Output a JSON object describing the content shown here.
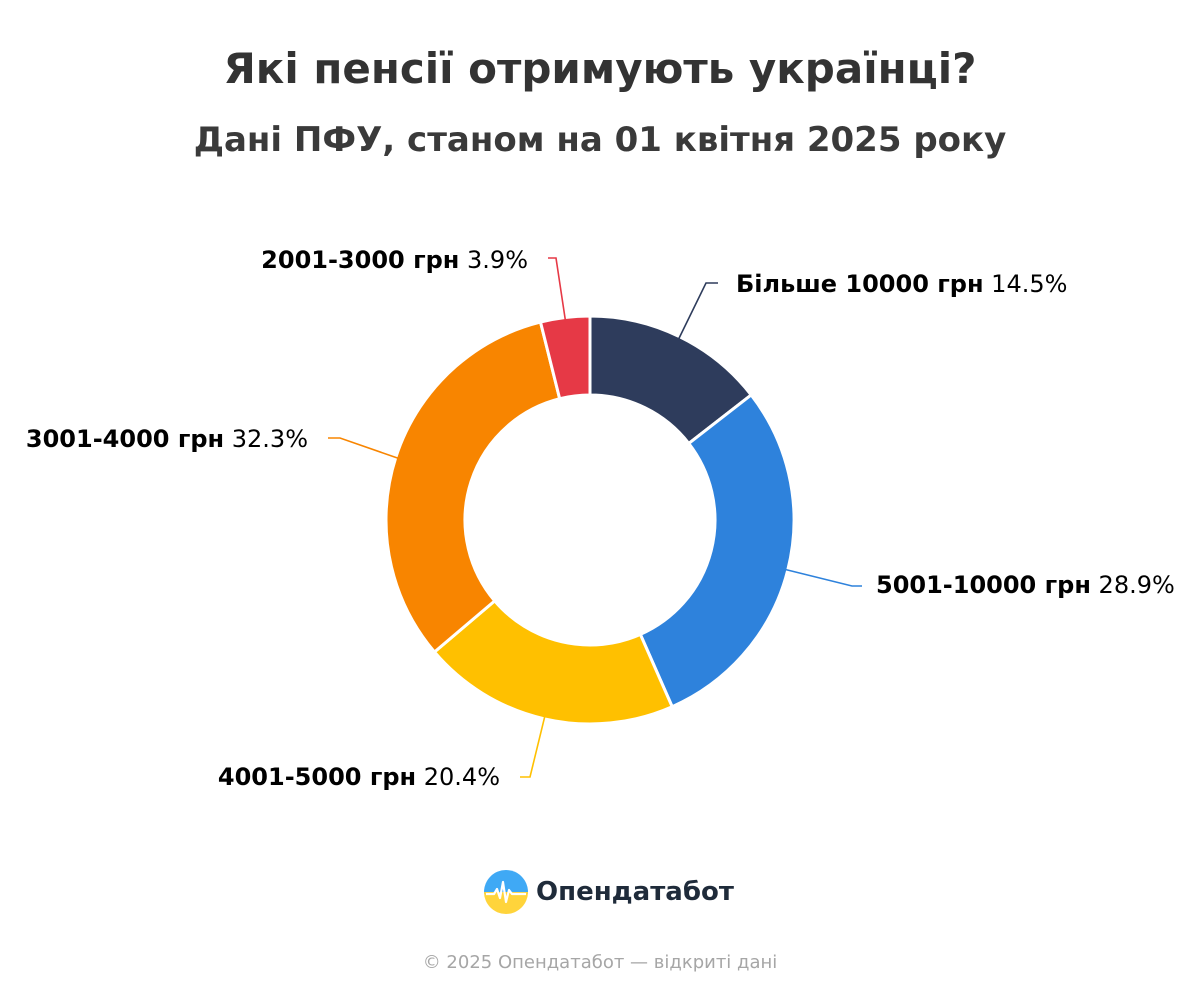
{
  "chart_data": {
    "type": "pie",
    "title": "Які пенсії отримують українці?",
    "subtitle": "Дані ПФУ, станом на 01 квітня 2025 року",
    "legend": "none",
    "series": [
      {
        "values": [
          14.5,
          28.9,
          20.4,
          32.3,
          3.9
        ]
      }
    ],
    "categories": [
      "Більше 10000 грн",
      "5001-10000 грн",
      "4001-5000 грн",
      "3001-4000 грн",
      "2001-3000 грн"
    ],
    "values": [
      14.5,
      28.9,
      20.4,
      32.3,
      3.9
    ],
    "value_labels": [
      "14.5%",
      "28.9%",
      "20.4%",
      "32.3%",
      "3.9%"
    ],
    "colors": [
      "#2e3c5c",
      "#2e82dc",
      "#ffc000",
      "#f88500",
      "#e63946"
    ]
  },
  "logo": {
    "text": "Опендатабот",
    "icon": "opendatabot-logo-icon"
  },
  "footer": {
    "text": "© 2025 Опендатабот — відкриті дані"
  }
}
